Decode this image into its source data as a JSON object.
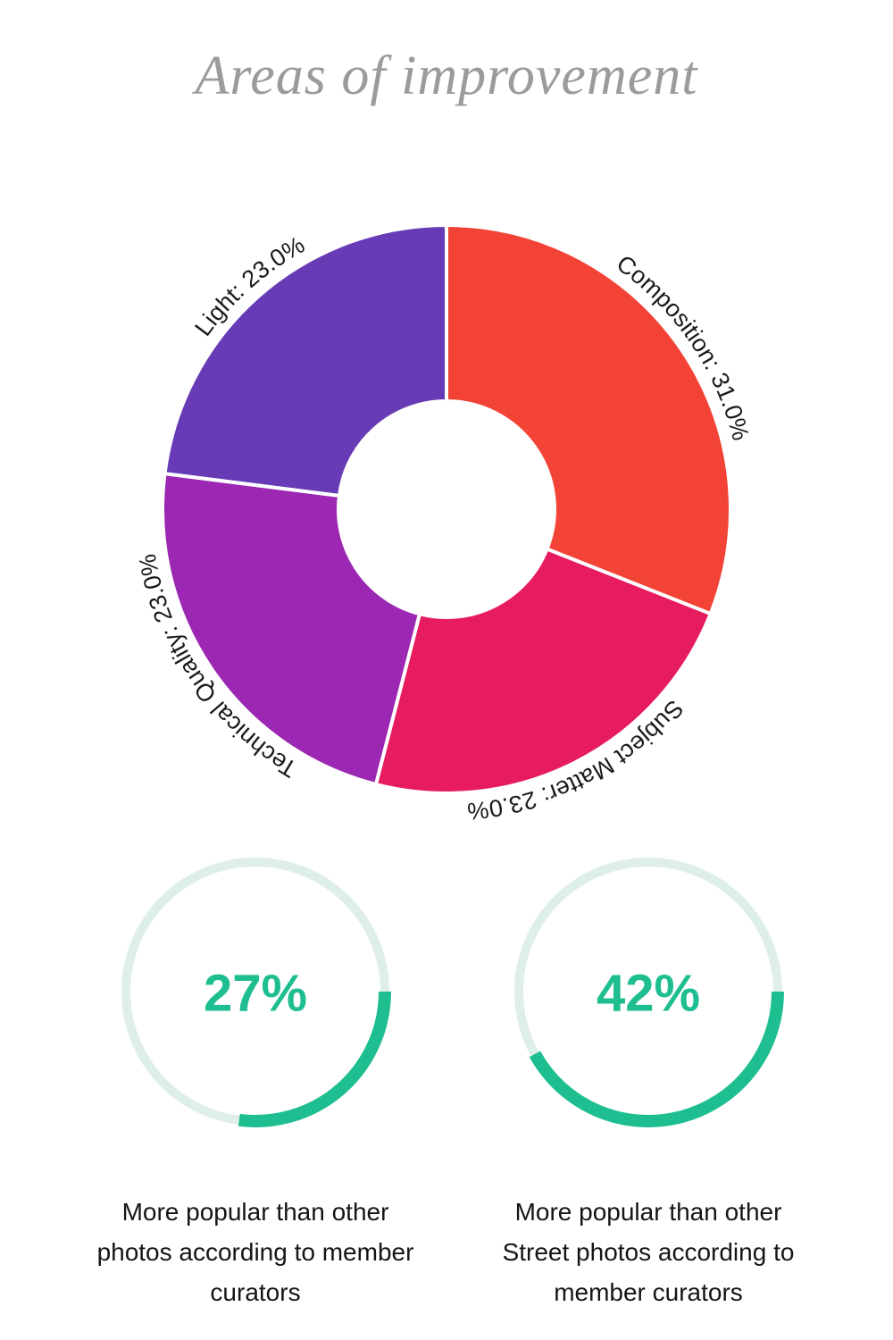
{
  "title": "Areas of improvement",
  "title_color": "#9b9b9b",
  "chart_data": [
    {
      "type": "pie",
      "subtype": "donut",
      "title": "Areas of improvement",
      "units": "%",
      "direction": "clockwise",
      "start_angle_deg_from_top": 0,
      "inner_radius_ratio": 0.38,
      "categories": [
        "Composition",
        "Subject Matter",
        "Technical Quality",
        "Light"
      ],
      "values": [
        31.0,
        23.0,
        23.0,
        23.0
      ],
      "labels": [
        "Composition: 31.0%",
        "Subject Matter: 23.0%",
        "Technical Quality: 23.0%",
        "Light: 23.0%"
      ],
      "colors": [
        "#F34236",
        "#E71C5F",
        "#9B27B2",
        "#663BB5"
      ],
      "label_color": "#1b1b1b",
      "slice_gap_color": "#ffffff",
      "legend": "none"
    },
    {
      "type": "progress-ring",
      "value_pct": 27,
      "display": "27%",
      "start_angle_deg_from_top": 90,
      "direction": "clockwise",
      "ring_color": "#1EBE91",
      "track_color": "#DEEEE8",
      "caption": "More popular than other photos according to member curators",
      "caption_lines": [
        "More popular than other",
        "photos according to member",
        "curators"
      ]
    },
    {
      "type": "progress-ring",
      "value_pct": 42,
      "display": "42%",
      "start_angle_deg_from_top": 90,
      "direction": "clockwise",
      "ring_color": "#1EBE91",
      "track_color": "#DEEEE8",
      "caption": "More popular than other Street photos according to member curators",
      "caption_lines": [
        "More popular than other",
        "Street photos according to",
        "member curators"
      ]
    }
  ]
}
